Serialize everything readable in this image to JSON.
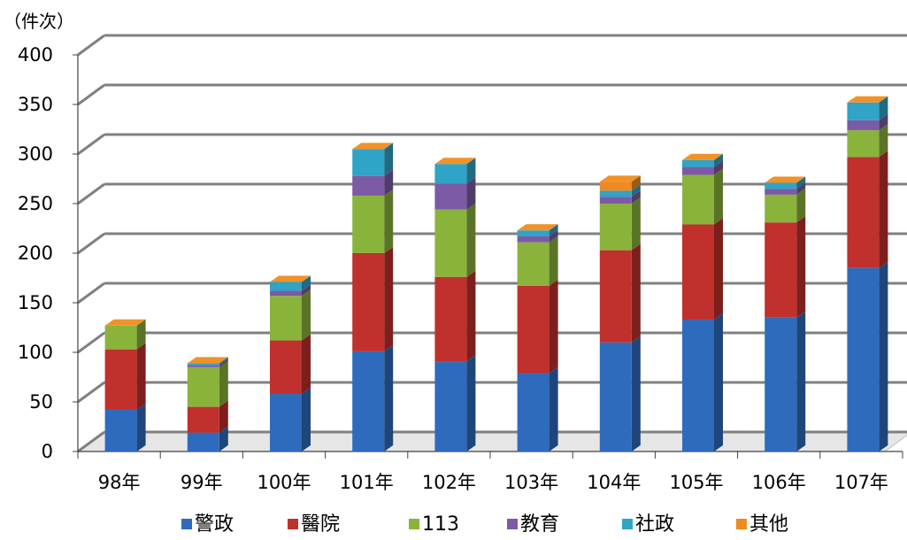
{
  "chart_data": {
    "type": "bar",
    "stacked": true,
    "three_d": true,
    "y_unit_label": "（件次）",
    "categories": [
      "98年",
      "99年",
      "100年",
      "101年",
      "102年",
      "103年",
      "104年",
      "105年",
      "106年",
      "107年"
    ],
    "ylim": [
      0,
      400
    ],
    "yticks": [
      0,
      50,
      100,
      150,
      200,
      250,
      300,
      350,
      400
    ],
    "grid": true,
    "legend_position": "bottom",
    "series": [
      {
        "name": "警政",
        "color": "#2f6bbd",
        "values": [
          42,
          19,
          58,
          101,
          91,
          79,
          110,
          133,
          135,
          185
        ]
      },
      {
        "name": "醫院",
        "color": "#c0302c",
        "values": [
          61,
          26,
          54,
          99,
          85,
          88,
          93,
          96,
          96,
          112
        ]
      },
      {
        "name": "113",
        "color": "#8ab33c",
        "values": [
          24,
          40,
          45,
          58,
          68,
          44,
          47,
          50,
          28,
          27
        ]
      },
      {
        "name": "教育",
        "color": "#7c5aa6",
        "values": [
          0,
          2,
          5,
          20,
          26,
          6,
          7,
          8,
          6,
          10
        ]
      },
      {
        "name": "社政",
        "color": "#2fa4c6",
        "values": [
          0,
          2,
          9,
          27,
          20,
          6,
          6,
          7,
          6,
          18
        ]
      },
      {
        "name": "其他",
        "color": "#ef8a22",
        "values": [
          0,
          0,
          0,
          0,
          0,
          0,
          9,
          0,
          0,
          0
        ]
      }
    ]
  }
}
